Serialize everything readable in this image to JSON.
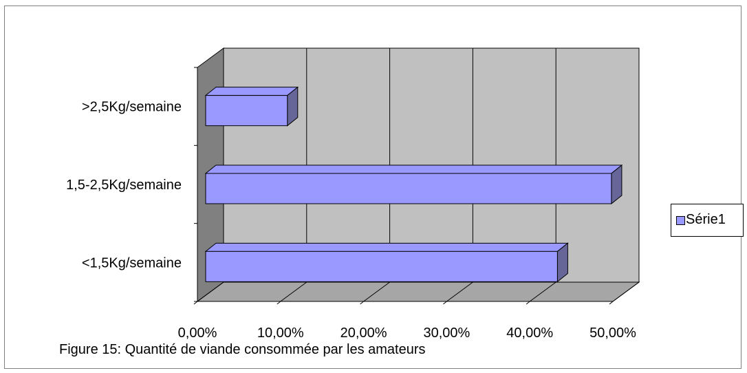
{
  "chart_data": {
    "type": "bar",
    "orientation": "horizontal",
    "style": "3d",
    "categories": [
      "<1,5Kg/semaine",
      "1,5-2,5Kg/semaine",
      ">2,5Kg/semaine"
    ],
    "series": [
      {
        "name": "Série1",
        "values": [
          0.425,
          0.49,
          0.1
        ]
      }
    ],
    "xticks": [
      "0,00%",
      "10,00%",
      "20,00%",
      "30,00%",
      "40,00%",
      "50,00%"
    ],
    "xlim": [
      0,
      0.5
    ],
    "grid": true,
    "legend_position": "right",
    "caption": "Figure 15: Quantité de viande consommée par les amateurs",
    "colors": {
      "bar": "#9999ff",
      "bar_side": "#666699",
      "plot_back": "#c0c0c0",
      "wall_side": "#808080"
    }
  }
}
